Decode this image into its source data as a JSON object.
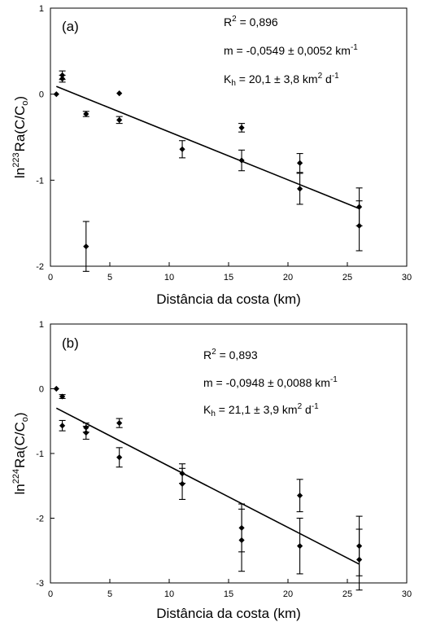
{
  "chart_data": [
    {
      "type": "scatter",
      "panel_label": "(a)",
      "xlabel": "Distância da costa (km)",
      "ylabel": {
        "prefix": "ln",
        "isotope": "223",
        "element": "Ra",
        "expr": "(C/C",
        "sub": "o",
        "close": ")"
      },
      "xlim": [
        0,
        30
      ],
      "ylim": [
        -2,
        1
      ],
      "xticks": [
        "0",
        "5",
        "10",
        "15",
        "20",
        "25",
        "30"
      ],
      "yticks": [
        "-2",
        "-1",
        "0",
        "1"
      ],
      "annotations": [
        {
          "text": "R",
          "sup": "2",
          "rest": " = 0,896"
        },
        {
          "text": "m = -0,0549 ± 0,0052 km",
          "sup": "-1",
          "rest": ""
        },
        {
          "text": "K",
          "sub": "h",
          "text2": " = 20,1 ± 3,8 km",
          "sup": "2",
          "rest": " d",
          "sup2": "-1"
        }
      ],
      "fit": {
        "x": [
          0.5,
          26.0
        ],
        "y": [
          0.09,
          -1.33
        ]
      },
      "points": [
        {
          "x": 0.5,
          "y": 0.0,
          "err": 0.0
        },
        {
          "x": 1.0,
          "y": 0.22,
          "err": 0.05
        },
        {
          "x": 1.0,
          "y": 0.18,
          "err": 0.04
        },
        {
          "x": 3.0,
          "y": -0.23,
          "err": 0.03
        },
        {
          "x": 3.0,
          "y": -1.77,
          "err": 0.29
        },
        {
          "x": 5.8,
          "y": 0.01,
          "err": 0.0
        },
        {
          "x": 5.8,
          "y": -0.3,
          "err": 0.04
        },
        {
          "x": 11.1,
          "y": -0.64,
          "err": 0.1
        },
        {
          "x": 16.1,
          "y": -0.39,
          "err": 0.05
        },
        {
          "x": 16.1,
          "y": -0.77,
          "err": 0.12
        },
        {
          "x": 21.0,
          "y": -0.8,
          "err": 0.11
        },
        {
          "x": 21.0,
          "y": -1.1,
          "err": 0.18
        },
        {
          "x": 26.0,
          "y": -1.31,
          "err": 0.22
        },
        {
          "x": 26.0,
          "y": -1.53,
          "err": 0.29
        }
      ]
    },
    {
      "type": "scatter",
      "panel_label": "(b)",
      "xlabel": "Distância da costa (km)",
      "ylabel": {
        "prefix": "ln",
        "isotope": "224",
        "element": "Ra",
        "expr": "(C/C",
        "sub": "o",
        "close": ")"
      },
      "xlim": [
        0,
        30
      ],
      "ylim": [
        -3,
        1
      ],
      "xticks": [
        "0",
        "5",
        "10",
        "15",
        "20",
        "25",
        "30"
      ],
      "yticks": [
        "-3",
        "-2",
        "-1",
        "0",
        "1"
      ],
      "annotations": [
        {
          "text": "R",
          "sup": "2",
          "rest": " = 0,893"
        },
        {
          "text": "m = -0,0948 ± 0,0088 km",
          "sup": "-1",
          "rest": ""
        },
        {
          "text": "K",
          "sub": "h",
          "text2": " = 21,1 ± 3,9 km",
          "sup": "2",
          "rest": " d",
          "sup2": "-1"
        }
      ],
      "fit": {
        "x": [
          0.5,
          26.0
        ],
        "y": [
          -0.3,
          -2.71
        ]
      },
      "points": [
        {
          "x": 0.5,
          "y": 0.0,
          "err": 0.0
        },
        {
          "x": 1.0,
          "y": -0.12,
          "err": 0.03
        },
        {
          "x": 1.0,
          "y": -0.57,
          "err": 0.08
        },
        {
          "x": 3.0,
          "y": -0.6,
          "err": 0.07
        },
        {
          "x": 3.0,
          "y": -0.68,
          "err": 0.1
        },
        {
          "x": 5.8,
          "y": -0.53,
          "err": 0.07
        },
        {
          "x": 5.8,
          "y": -1.06,
          "err": 0.15
        },
        {
          "x": 11.1,
          "y": -1.31,
          "err": 0.15
        },
        {
          "x": 11.1,
          "y": -1.47,
          "err": 0.24
        },
        {
          "x": 16.1,
          "y": -2.15,
          "err": 0.37
        },
        {
          "x": 16.1,
          "y": -2.34,
          "err": 0.48
        },
        {
          "x": 21.0,
          "y": -1.65,
          "err": 0.25
        },
        {
          "x": 21.0,
          "y": -2.43,
          "err": 0.43
        },
        {
          "x": 26.0,
          "y": -2.43,
          "err": 0.46
        },
        {
          "x": 26.0,
          "y": -2.64,
          "err": 0.47
        }
      ]
    }
  ]
}
